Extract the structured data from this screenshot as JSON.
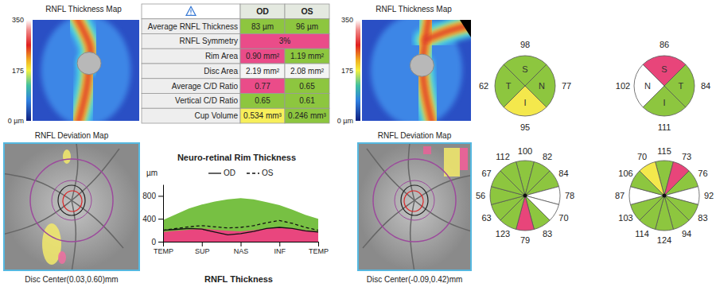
{
  "thickness_maps": [
    {
      "title": "RNFL Thickness Map",
      "colorbar": {
        "range": [
          0,
          350
        ],
        "ticks": [
          350,
          175,
          {
            "value": 0,
            "label": "0 µm"
          }
        ]
      }
    },
    {
      "title": "RNFL Thickness Map",
      "colorbar": {
        "range": [
          0,
          350
        ],
        "ticks": [
          350,
          175,
          {
            "value": 0,
            "label": "0 µm"
          }
        ]
      }
    }
  ],
  "table": {
    "columns": [
      "OD",
      "OS"
    ],
    "rows": [
      {
        "label": "Average RNFL Thickness",
        "cells": [
          {
            "text": "83 µm",
            "color": "#8dc63f"
          },
          {
            "text": "96 µm",
            "color": "#8dc63f"
          }
        ]
      },
      {
        "label": "RNFL Symmetry",
        "cells": [
          {
            "text": "3%",
            "color": "#ea4c89"
          }
        ]
      },
      {
        "label": "Rim Area",
        "cells": [
          {
            "text": "0.90 mm²",
            "color": "#ea4c89"
          },
          {
            "text": "1.19 mm²",
            "color": "#8dc63f"
          }
        ]
      },
      {
        "label": "Disc Area",
        "cells": [
          {
            "text": "2.19 mm²",
            "color": "#f4f4f4"
          },
          {
            "text": "2.08 mm²",
            "color": "#f4f4f4"
          }
        ]
      },
      {
        "label": "Average C/D Ratio",
        "cells": [
          {
            "text": "0.77",
            "color": "#ea4c89"
          },
          {
            "text": "0.65",
            "color": "#8dc63f"
          }
        ]
      },
      {
        "label": "Vertical C/D Ratio",
        "cells": [
          {
            "text": "0.65",
            "color": "#8dc63f"
          },
          {
            "text": "0.61",
            "color": "#8dc63f"
          }
        ]
      },
      {
        "label": "Cup Volume",
        "cells": [
          {
            "text": "0.534 mm³",
            "color": "#f7ef5a"
          },
          {
            "text": "0.246 mm³",
            "color": "#8dc63f"
          }
        ]
      }
    ]
  },
  "deviation_maps": [
    {
      "title": "RNFL Deviation Map",
      "caption": "Disc Center(0.03,0.60)mm"
    },
    {
      "title": "RNFL Deviation Map",
      "caption": "Disc Center(-0.09,0.42)mm"
    }
  ],
  "chart_data": {
    "type": "line",
    "title": "Neuro-retinal Rim Thickness",
    "y_label": "µm",
    "x": [
      0,
      30,
      60,
      90,
      120,
      150,
      180,
      210,
      240,
      270,
      300,
      330,
      360
    ],
    "xlim": [
      0,
      360
    ],
    "xticks": [
      {
        "value": 0,
        "label": "TEMP"
      },
      {
        "value": 90,
        "label": "SUP"
      },
      {
        "value": 180,
        "label": "NAS"
      },
      {
        "value": 270,
        "label": "INF"
      },
      {
        "value": 360,
        "label": "TEMP"
      }
    ],
    "ylim": [
      0,
      1000
    ],
    "yticks": [
      0,
      400,
      800
    ],
    "legend": "top",
    "series": [
      {
        "type": "area",
        "color": "#77c043",
        "values": [
          380,
          480,
          580,
          650,
          700,
          740,
          760,
          740,
          690,
          640,
          560,
          470,
          400
        ]
      },
      {
        "type": "area",
        "color": "#e9467e",
        "values": [
          170,
          190,
          210,
          230,
          210,
          190,
          180,
          200,
          230,
          250,
          230,
          200,
          180
        ]
      },
      {
        "name": "OD",
        "type": "line",
        "line_style": "solid",
        "color": "#111111",
        "values": [
          200,
          215,
          230,
          220,
          170,
          120,
          140,
          180,
          230,
          250,
          230,
          190,
          170
        ]
      },
      {
        "name": "OS",
        "type": "line",
        "line_style": "dashed",
        "color": "#111111",
        "values": [
          200,
          230,
          260,
          280,
          260,
          240,
          250,
          280,
          330,
          370,
          320,
          250,
          200
        ]
      }
    ]
  },
  "footer": "RNFL Thickness",
  "sector_charts": [
    {
      "quadrants": [
        {
          "label": "S",
          "value": 98,
          "color": "#8dc63f"
        },
        {
          "label": "N",
          "value": 77,
          "color": "#8dc63f"
        },
        {
          "label": "I",
          "value": 95,
          "color": "#f4e84c"
        },
        {
          "label": "T",
          "value": 62,
          "color": "#8dc63f"
        }
      ],
      "clock_hours": [
        {
          "value": 100,
          "color": "#8dc63f"
        },
        {
          "value": 82,
          "color": "#8dc63f"
        },
        {
          "value": 84,
          "color": "#8dc63f"
        },
        {
          "value": 78,
          "color": "#ffffff"
        },
        {
          "value": 70,
          "color": "#ffffff"
        },
        {
          "value": 83,
          "color": "#8dc63f"
        },
        {
          "value": 79,
          "color": "#e8457a"
        },
        {
          "value": 123,
          "color": "#8dc63f"
        },
        {
          "value": 63,
          "color": "#8dc63f"
        },
        {
          "value": 56,
          "color": "#8dc63f"
        },
        {
          "value": 67,
          "color": "#8dc63f"
        },
        {
          "value": 112,
          "color": "#8dc63f"
        }
      ]
    },
    {
      "quadrants": [
        {
          "label": "S",
          "value": 86,
          "color": "#e8457a"
        },
        {
          "label": "T",
          "value": 84,
          "color": "#8dc63f"
        },
        {
          "label": "I",
          "value": 111,
          "color": "#8dc63f"
        },
        {
          "label": "N",
          "value": 102,
          "color": "#ffffff"
        }
      ],
      "clock_hours": [
        {
          "value": 115,
          "color": "#8dc63f"
        },
        {
          "value": 73,
          "color": "#e8457a"
        },
        {
          "value": 76,
          "color": "#8dc63f"
        },
        {
          "value": 92,
          "color": "#ffffff"
        },
        {
          "value": 83,
          "color": "#8dc63f"
        },
        {
          "value": 94,
          "color": "#8dc63f"
        },
        {
          "value": 124,
          "color": "#8dc63f"
        },
        {
          "value": 114,
          "color": "#8dc63f"
        },
        {
          "value": 103,
          "color": "#8dc63f"
        },
        {
          "value": 87,
          "color": "#ffffff"
        },
        {
          "value": 106,
          "color": "#8dc63f"
        },
        {
          "value": 70,
          "color": "#f4e84c"
        }
      ]
    }
  ]
}
